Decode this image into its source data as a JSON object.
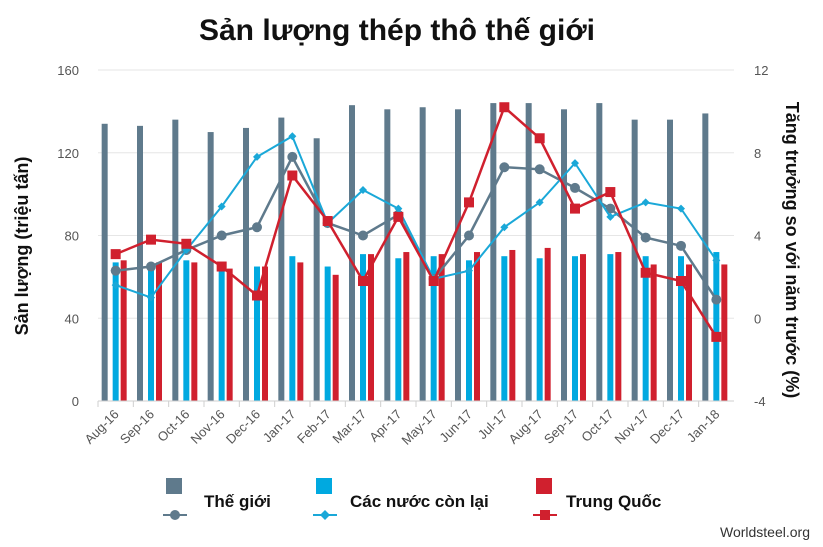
{
  "chart_data": {
    "type": "bar",
    "title": "Sản lượng thép thô thế giới",
    "ylabel": "Sản lượng (triệu tấn)",
    "y2label": "Tăng trưởng so với năm trước (%)",
    "source": "Worldsteel.org",
    "ylim": [
      0,
      160
    ],
    "y2lim": [
      -4,
      12
    ],
    "yticks": [
      0,
      40,
      80,
      120,
      160
    ],
    "y2ticks": [
      -4,
      0,
      4,
      8,
      12
    ],
    "grid": true,
    "legend_position": "bottom",
    "categories": [
      "Aug-16",
      "Sep-16",
      "Oct-16",
      "Nov-16",
      "Dec-16",
      "Jan-17",
      "Feb-17",
      "Mar-17",
      "Apr-17",
      "May-17",
      "Jun-17",
      "Jul-17",
      "Aug-17",
      "Sep-17",
      "Oct-17",
      "Nov-17",
      "Dec-17",
      "Jan-18"
    ],
    "series": [
      {
        "name": "Thế giới",
        "type": "bar",
        "axis": "left",
        "color": "#5f7a8c",
        "values": [
          134,
          133,
          136,
          130,
          132,
          137,
          127,
          143,
          141,
          142,
          141,
          144,
          144,
          141,
          144,
          136,
          136,
          139
        ]
      },
      {
        "name": "Các nước còn lại",
        "type": "bar",
        "axis": "left",
        "color": "#00a9e0",
        "values": [
          67,
          66,
          68,
          65,
          65,
          70,
          65,
          71,
          69,
          70,
          68,
          70,
          69,
          70,
          71,
          70,
          70,
          72
        ]
      },
      {
        "name": "Trung Quốc",
        "type": "bar",
        "axis": "left",
        "color": "#d0202e",
        "values": [
          68,
          67,
          67,
          64,
          65,
          67,
          61,
          71,
          72,
          71,
          72,
          73,
          74,
          71,
          72,
          66,
          66,
          66
        ]
      },
      {
        "name": "Thế giới",
        "type": "line",
        "axis": "right",
        "color": "#5f7a8c",
        "values": [
          2.3,
          2.5,
          3.3,
          4.0,
          4.4,
          7.8,
          4.6,
          4.0,
          5.0,
          1.9,
          4.0,
          7.3,
          7.2,
          6.3,
          5.3,
          3.9,
          3.5,
          0.9
        ]
      },
      {
        "name": "Các nước còn lại",
        "type": "line",
        "axis": "right",
        "color": "#1aa8d8",
        "values": [
          1.6,
          1.0,
          3.3,
          5.4,
          7.8,
          8.8,
          4.6,
          6.2,
          5.3,
          1.9,
          2.3,
          4.4,
          5.6,
          7.5,
          4.9,
          5.6,
          5.3,
          2.8
        ]
      },
      {
        "name": "Trung Quốc",
        "type": "line",
        "axis": "right",
        "color": "#d0202e",
        "values": [
          3.1,
          3.8,
          3.6,
          2.5,
          1.1,
          6.9,
          4.7,
          1.8,
          4.9,
          1.8,
          5.6,
          10.2,
          8.7,
          5.3,
          6.1,
          2.2,
          1.8,
          -0.9
        ]
      }
    ]
  }
}
